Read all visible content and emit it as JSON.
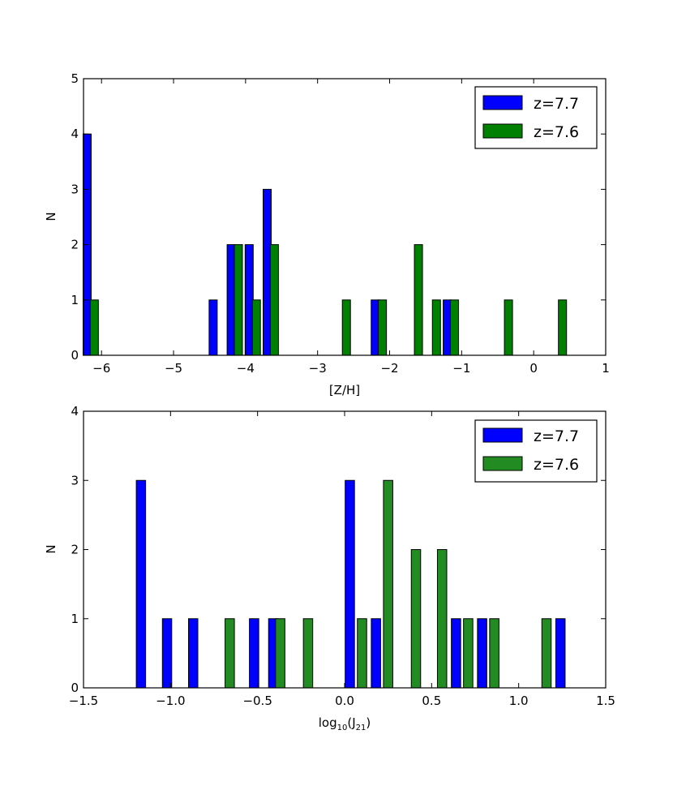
{
  "chart_data": [
    {
      "type": "bar",
      "xlabel": "[Z/H]",
      "ylabel": "N",
      "xlim": [
        -6.25,
        1
      ],
      "ylim": [
        0,
        5
      ],
      "xticks": [
        -6,
        -5,
        -4,
        -3,
        -2,
        -1,
        0,
        1
      ],
      "xtick_labels": [
        "−6",
        "−5",
        "−4",
        "−3",
        "−2",
        "−1",
        "0",
        "1"
      ],
      "yticks": [
        0,
        1,
        2,
        3,
        4,
        5
      ],
      "ytick_labels": [
        "0",
        "1",
        "2",
        "3",
        "4",
        "5"
      ],
      "legend_position": "top-right",
      "series": [
        {
          "name": "z=7.7",
          "color": "#0000ff",
          "bars": [
            {
              "x": -6.2,
              "value": 4
            },
            {
              "x": -4.45,
              "value": 1
            },
            {
              "x": -4.2,
              "value": 2
            },
            {
              "x": -3.95,
              "value": 2
            },
            {
              "x": -3.7,
              "value": 3
            },
            {
              "x": -2.2,
              "value": 1
            },
            {
              "x": -1.2,
              "value": 1
            }
          ]
        },
        {
          "name": "z=7.6",
          "color": "#008000",
          "bars": [
            {
              "x": -6.1,
              "value": 1
            },
            {
              "x": -4.1,
              "value": 2
            },
            {
              "x": -3.85,
              "value": 1
            },
            {
              "x": -3.6,
              "value": 2
            },
            {
              "x": -2.6,
              "value": 1
            },
            {
              "x": -2.1,
              "value": 1
            },
            {
              "x": -1.6,
              "value": 2
            },
            {
              "x": -1.35,
              "value": 1
            },
            {
              "x": -1.1,
              "value": 1
            },
            {
              "x": -0.35,
              "value": 1
            },
            {
              "x": 0.4,
              "value": 1
            }
          ]
        }
      ]
    },
    {
      "type": "bar",
      "xlabel_main": "log",
      "xlabel_sub": "10",
      "xlabel_arg": "(J",
      "xlabel_arg_sub": "21",
      "xlabel_close": ")",
      "ylabel": "N",
      "xlim": [
        -1.5,
        1.5
      ],
      "ylim": [
        0,
        4
      ],
      "xticks": [
        -1.5,
        -1.0,
        -0.5,
        0.0,
        0.5,
        1.0,
        1.5
      ],
      "xtick_labels": [
        "−1.5",
        "−1.0",
        "−0.5",
        "0.0",
        "0.5",
        "1.0",
        "1.5"
      ],
      "yticks": [
        0,
        1,
        2,
        3,
        4
      ],
      "ytick_labels": [
        "0",
        "1",
        "2",
        "3",
        "4"
      ],
      "legend_position": "top-right",
      "series": [
        {
          "name": "z=7.7",
          "color": "#0000ff",
          "bars": [
            {
              "x": -1.17,
              "value": 3
            },
            {
              "x": -1.02,
              "value": 1
            },
            {
              "x": -0.87,
              "value": 1
            },
            {
              "x": -0.52,
              "value": 1
            },
            {
              "x": -0.41,
              "value": 1
            },
            {
              "x": 0.03,
              "value": 3
            },
            {
              "x": 0.18,
              "value": 1
            },
            {
              "x": 0.64,
              "value": 1
            },
            {
              "x": 0.79,
              "value": 1
            },
            {
              "x": 1.24,
              "value": 1
            }
          ]
        },
        {
          "name": "z=7.6",
          "color": "#228b22",
          "bars": [
            {
              "x": -0.66,
              "value": 1
            },
            {
              "x": -0.37,
              "value": 1
            },
            {
              "x": -0.21,
              "value": 1
            },
            {
              "x": 0.1,
              "value": 1
            },
            {
              "x": 0.25,
              "value": 3
            },
            {
              "x": 0.41,
              "value": 2
            },
            {
              "x": 0.56,
              "value": 2
            },
            {
              "x": 0.71,
              "value": 1
            },
            {
              "x": 0.86,
              "value": 1
            },
            {
              "x": 1.16,
              "value": 1
            }
          ]
        }
      ]
    }
  ]
}
